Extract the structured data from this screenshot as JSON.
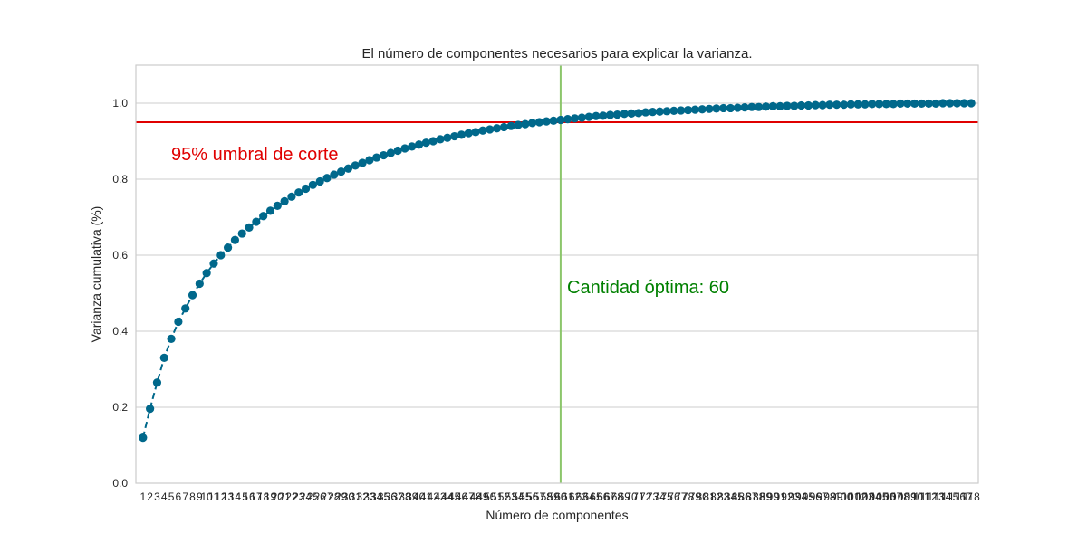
{
  "chart_data": {
    "type": "line",
    "title": "El número de componentes necesarios para explicar la varianza.",
    "xlabel": "Número de componentes",
    "ylabel": "Varianza cumulativa (%)",
    "xlim": [
      0,
      119
    ],
    "ylim": [
      0.0,
      1.1
    ],
    "yticks": [
      "0.0",
      "0.2",
      "0.4",
      "0.6",
      "0.8",
      "1.0"
    ],
    "grid": true,
    "x": [
      1,
      2,
      3,
      4,
      5,
      6,
      7,
      8,
      9,
      10,
      11,
      12,
      13,
      14,
      15,
      16,
      17,
      18,
      19,
      20,
      21,
      22,
      23,
      24,
      25,
      26,
      27,
      28,
      29,
      30,
      31,
      32,
      33,
      34,
      35,
      36,
      37,
      38,
      39,
      40,
      41,
      42,
      43,
      44,
      45,
      46,
      47,
      48,
      49,
      50,
      51,
      52,
      53,
      54,
      55,
      56,
      57,
      58,
      59,
      60,
      61,
      62,
      63,
      64,
      65,
      66,
      67,
      68,
      69,
      70,
      71,
      72,
      73,
      74,
      75,
      76,
      77,
      78,
      79,
      80,
      81,
      82,
      83,
      84,
      85,
      86,
      87,
      88,
      89,
      90,
      91,
      92,
      93,
      94,
      95,
      96,
      97,
      98,
      99,
      100,
      101,
      102,
      103,
      104,
      105,
      106,
      107,
      108,
      109,
      110,
      111,
      112,
      113,
      114,
      115,
      116,
      117,
      118
    ],
    "series": [
      {
        "color": "#00688b",
        "style": "dashed-line-with-circle-markers",
        "values": [
          0.12,
          0.196,
          0.265,
          0.33,
          0.38,
          0.425,
          0.46,
          0.495,
          0.525,
          0.553,
          0.578,
          0.6,
          0.62,
          0.64,
          0.657,
          0.673,
          0.688,
          0.703,
          0.717,
          0.73,
          0.742,
          0.754,
          0.765,
          0.775,
          0.785,
          0.794,
          0.803,
          0.812,
          0.82,
          0.828,
          0.836,
          0.843,
          0.85,
          0.857,
          0.863,
          0.869,
          0.875,
          0.881,
          0.886,
          0.891,
          0.896,
          0.9,
          0.905,
          0.909,
          0.913,
          0.917,
          0.921,
          0.924,
          0.928,
          0.931,
          0.934,
          0.937,
          0.94,
          0.943,
          0.945,
          0.948,
          0.95,
          0.952,
          0.954,
          0.956,
          0.958,
          0.96,
          0.962,
          0.964,
          0.966,
          0.967,
          0.969,
          0.97,
          0.972,
          0.973,
          0.974,
          0.976,
          0.977,
          0.978,
          0.979,
          0.98,
          0.981,
          0.982,
          0.983,
          0.984,
          0.985,
          0.986,
          0.987,
          0.987,
          0.988,
          0.989,
          0.99,
          0.99,
          0.991,
          0.992,
          0.992,
          0.993,
          0.993,
          0.994,
          0.994,
          0.995,
          0.995,
          0.996,
          0.996,
          0.996,
          0.997,
          0.997,
          0.997,
          0.998,
          0.998,
          0.998,
          0.998,
          0.999,
          0.999,
          0.999,
          0.999,
          0.999,
          0.999,
          1.0,
          1.0,
          1.0,
          1.0,
          1.0
        ]
      }
    ],
    "threshold": {
      "value": 0.95,
      "color": "#e00000",
      "label": "95% umbral de corte"
    },
    "optimal": {
      "value": 60,
      "color": "#8cc66b",
      "label": "Cantidad óptima: 60",
      "label_color": "#008000"
    }
  }
}
